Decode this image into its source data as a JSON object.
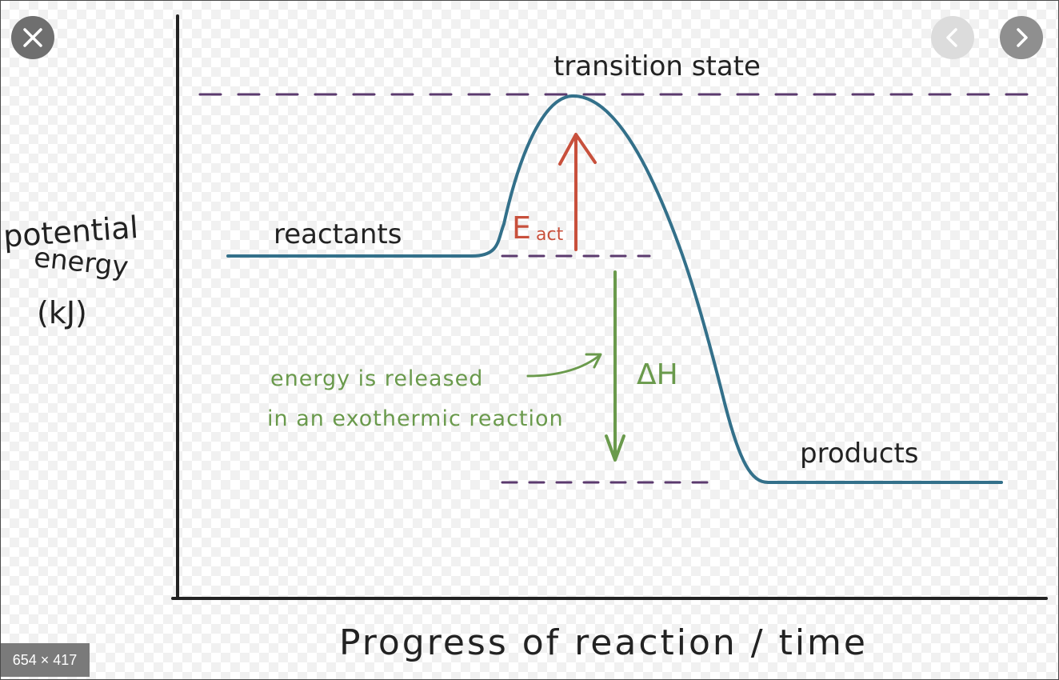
{
  "viewer": {
    "dimensions": "654 × 417",
    "controls": {
      "close": "close-icon",
      "previous": "chevron-left-icon",
      "next": "chevron-right-icon"
    }
  },
  "diagram": {
    "y_axis_label": [
      "potential",
      "energy",
      "(kJ)"
    ],
    "x_axis_label": "Progress of reaction / time",
    "labels": {
      "transition_state": "transition state",
      "reactants": "reactants",
      "products": "products",
      "activation_energy_main": "E",
      "activation_energy_sub": "act",
      "enthalpy_change": "ΔH",
      "note_line1": "energy is released",
      "note_line2": "in an exothermic reaction"
    },
    "colors": {
      "curve": "#33708a",
      "dashed_lines": "#5b3a6e",
      "activation_arrow": "#c8503c",
      "enthalpy_arrow": "#6a9a4c",
      "axes": "#222222"
    }
  }
}
